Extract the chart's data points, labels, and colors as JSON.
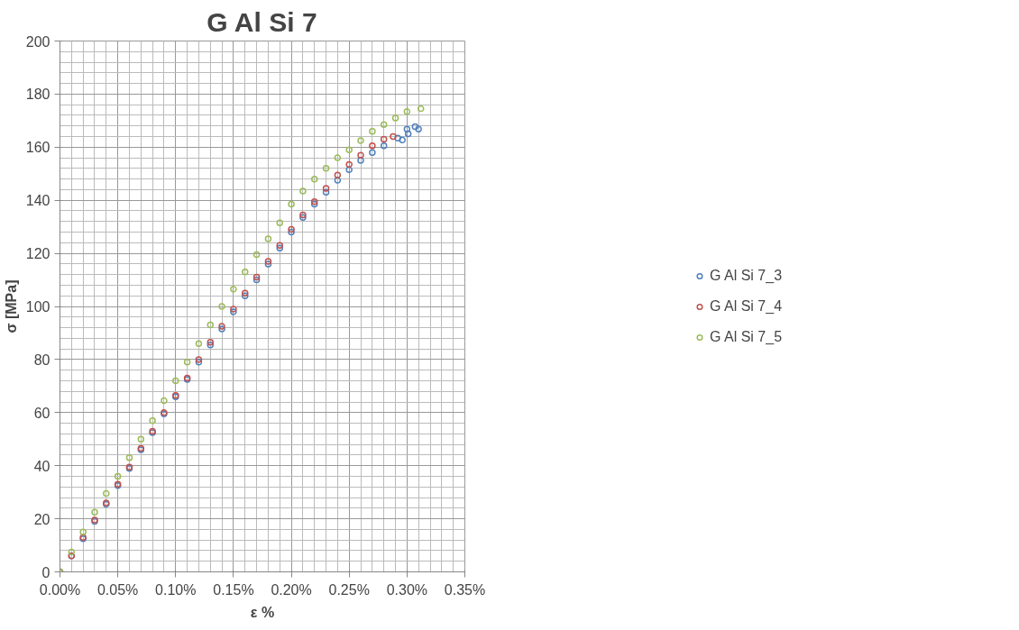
{
  "chart_data": {
    "type": "scatter",
    "title": "G Al Si 7",
    "xlabel": "ε %",
    "ylabel": "σ [MPa]",
    "xlim": [
      0,
      0.35
    ],
    "ylim": [
      0,
      200
    ],
    "xticks": [
      {
        "value": 0,
        "label": "0.00%"
      },
      {
        "value": 0.05,
        "label": "0.05%"
      },
      {
        "value": 0.1,
        "label": "0.10%"
      },
      {
        "value": 0.15,
        "label": "0.15%"
      },
      {
        "value": 0.2,
        "label": "0.20%"
      },
      {
        "value": 0.25,
        "label": "0.25%"
      },
      {
        "value": 0.3,
        "label": "0.30%"
      },
      {
        "value": 0.35,
        "label": "0.35%"
      }
    ],
    "yticks": [
      0,
      20,
      40,
      60,
      80,
      100,
      120,
      140,
      160,
      180,
      200
    ],
    "grid": true,
    "legend": "right",
    "marker": "circle",
    "series": [
      {
        "name": "G Al Si 7_3",
        "color": "#4f81bd",
        "x": [
          0,
          0.01,
          0.02,
          0.03,
          0.04,
          0.05,
          0.06,
          0.07,
          0.08,
          0.09,
          0.1,
          0.11,
          0.12,
          0.13,
          0.14,
          0.15,
          0.16,
          0.17,
          0.18,
          0.19,
          0.2,
          0.21,
          0.22,
          0.23,
          0.24,
          0.25,
          0.26,
          0.27,
          0.28,
          0.292,
          0.296,
          0.3,
          0.301,
          0.307,
          0.31
        ],
        "values": [
          0,
          6,
          12.5,
          19,
          25.5,
          32.5,
          39,
          46,
          52.5,
          59.5,
          66,
          72.5,
          79,
          85.5,
          91.5,
          98,
          104,
          110,
          116,
          122,
          128,
          133.5,
          138.5,
          143,
          147.5,
          151.5,
          155,
          158,
          160.5,
          163.4,
          162.7,
          166.8,
          165,
          167.7,
          166.8
        ]
      },
      {
        "name": "G Al Si 7_4",
        "color": "#c0504d",
        "x": [
          0,
          0.01,
          0.02,
          0.03,
          0.04,
          0.05,
          0.06,
          0.07,
          0.08,
          0.09,
          0.1,
          0.11,
          0.12,
          0.13,
          0.14,
          0.15,
          0.16,
          0.17,
          0.18,
          0.19,
          0.2,
          0.21,
          0.22,
          0.23,
          0.24,
          0.25,
          0.26,
          0.27,
          0.28,
          0.288
        ],
        "values": [
          0,
          6,
          13,
          19.5,
          26,
          33,
          39.5,
          46.5,
          53,
          60,
          66.5,
          73,
          80,
          86.5,
          92.5,
          99,
          105,
          111,
          117,
          123,
          129,
          134.5,
          139.5,
          144.5,
          149.5,
          153.5,
          157,
          160.5,
          163,
          164
        ]
      },
      {
        "name": "G Al Si 7_5",
        "color": "#9bbb59",
        "x": [
          0,
          0.01,
          0.02,
          0.03,
          0.04,
          0.05,
          0.06,
          0.07,
          0.08,
          0.09,
          0.1,
          0.11,
          0.12,
          0.13,
          0.14,
          0.15,
          0.16,
          0.17,
          0.18,
          0.19,
          0.2,
          0.21,
          0.22,
          0.23,
          0.24,
          0.25,
          0.26,
          0.27,
          0.28,
          0.29,
          0.3,
          0.312
        ],
        "values": [
          0,
          7.5,
          15,
          22.5,
          29.5,
          36,
          43,
          50,
          57,
          64.5,
          72,
          79,
          86,
          93,
          100,
          106.5,
          113,
          119.5,
          125.5,
          131.5,
          138.5,
          143.5,
          148,
          152,
          156,
          159,
          162.5,
          166,
          168.5,
          171,
          173.4,
          174.5
        ]
      }
    ]
  }
}
